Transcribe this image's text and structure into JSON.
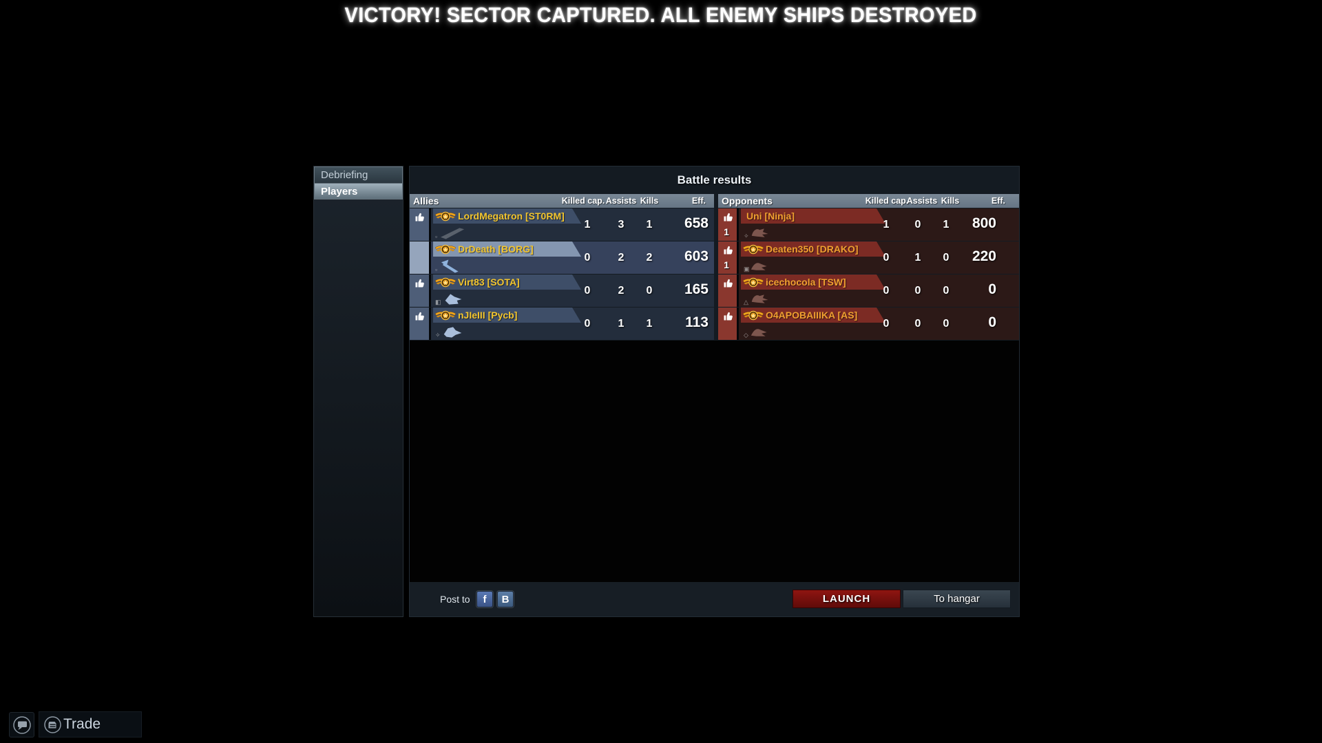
{
  "banner": {
    "text": "VICTORY! SECTOR CAPTURED. ALL ENEMY SHIPS DESTROYED"
  },
  "sidebar": {
    "tabs": [
      {
        "label": "Debriefing",
        "active": false
      },
      {
        "label": "Players",
        "active": true
      }
    ]
  },
  "panel": {
    "title": "Battle results",
    "columns": {
      "killed": "Killed cap.",
      "assists": "Assists",
      "kills": "Kills",
      "eff": "Eff."
    },
    "allies": {
      "label": "Allies",
      "rows": [
        {
          "name": "LordMegatron [ST0RM]",
          "badge": true,
          "thumb": true,
          "highlight": false,
          "ship": "dagger",
          "ship_color": "#59616c",
          "marker": "▫",
          "votes": "",
          "killed": "1",
          "assists": "3",
          "kills": "1",
          "eff": "658"
        },
        {
          "name": "DrDeath [BORG]",
          "badge": true,
          "thumb": false,
          "highlight": true,
          "ship": "arrow",
          "ship_color": "#8fb2dc",
          "marker": "▫",
          "votes": "",
          "killed": "0",
          "assists": "2",
          "kills": "2",
          "eff": "603"
        },
        {
          "name": "Virt83 [SOTA]",
          "badge": true,
          "thumb": true,
          "highlight": false,
          "ship": "fighter",
          "ship_color": "#a9bedb",
          "marker": "◧",
          "votes": "",
          "killed": "0",
          "assists": "2",
          "kills": "0",
          "eff": "165"
        },
        {
          "name": "nJIeIII [Pycb]",
          "badge": true,
          "thumb": true,
          "highlight": false,
          "ship": "fighter2",
          "ship_color": "#a9bedb",
          "marker": "✧",
          "votes": "",
          "killed": "0",
          "assists": "1",
          "kills": "1",
          "eff": "113"
        }
      ]
    },
    "opponents": {
      "label": "Opponents",
      "rows": [
        {
          "name": "Uni [Ninja]",
          "badge": false,
          "thumb": true,
          "highlight": false,
          "ship": "claw",
          "ship_color": "#7d564e",
          "marker": "✧",
          "votes": "1",
          "killed": "1",
          "assists": "0",
          "kills": "1",
          "eff": "800"
        },
        {
          "name": "Deaten350 [DRAKO]",
          "badge": true,
          "thumb": true,
          "highlight": false,
          "ship": "claw2",
          "ship_color": "#7d564e",
          "marker": "▣",
          "votes": "1",
          "killed": "0",
          "assists": "1",
          "kills": "0",
          "eff": "220"
        },
        {
          "name": "icechocola [TSW]",
          "badge": true,
          "thumb": true,
          "highlight": false,
          "ship": "claw",
          "ship_color": "#7d564e",
          "marker": "△",
          "votes": "",
          "killed": "0",
          "assists": "0",
          "kills": "0",
          "eff": "0"
        },
        {
          "name": "O4APOBAIIIKA [AS]",
          "badge": true,
          "thumb": true,
          "highlight": false,
          "ship": "claw2",
          "ship_color": "#7d564e",
          "marker": "◇",
          "votes": "",
          "killed": "0",
          "assists": "0",
          "kills": "0",
          "eff": "0"
        }
      ]
    },
    "footer": {
      "post_to": "Post to",
      "facebook": "f",
      "vk": "B",
      "launch": "LAUNCH",
      "to_hangar": "To hangar"
    }
  },
  "taskbar": {
    "trade": "Trade"
  },
  "colors": {
    "ally_gold": "#f2c52e",
    "opponent_gold": "#f0a030",
    "plain_name": "#e9e6e2",
    "ally_row": "#232d3c",
    "ally_plate": "#3e4e68",
    "ally_highlight_plate": "#8496b0",
    "opponent_row": "#2c1917",
    "opponent_plate": "#7c2b24",
    "opponent_thumb_col": "#8a372e",
    "header_bar": "#6e7d8c",
    "launch_red": "#8e1511",
    "facebook_blue": "#4a67a3",
    "vk_blue": "#4a6b94"
  }
}
